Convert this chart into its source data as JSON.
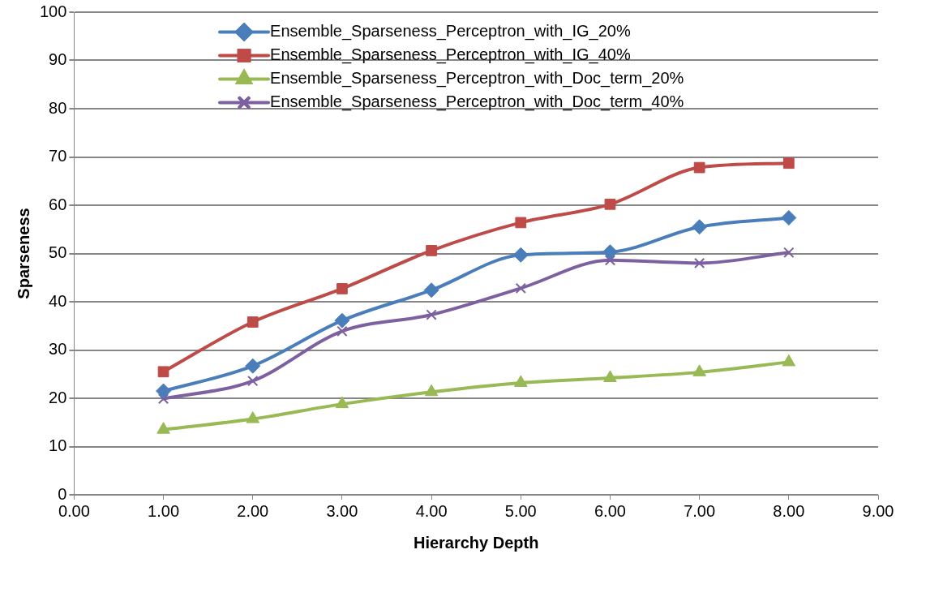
{
  "chart_data": {
    "type": "line",
    "xlabel": "Hierarchy Depth",
    "ylabel": "Sparseness",
    "x": [
      1,
      2,
      3,
      4,
      5,
      6,
      7,
      8
    ],
    "xlim": [
      0,
      9
    ],
    "xticks": [
      {
        "value": 0,
        "label": "0.00"
      },
      {
        "value": 1,
        "label": "1.00"
      },
      {
        "value": 2,
        "label": "2.00"
      },
      {
        "value": 3,
        "label": "3.00"
      },
      {
        "value": 4,
        "label": "4.00"
      },
      {
        "value": 5,
        "label": "5.00"
      },
      {
        "value": 6,
        "label": "6.00"
      },
      {
        "value": 7,
        "label": "7.00"
      },
      {
        "value": 8,
        "label": "8.00"
      },
      {
        "value": 9,
        "label": "9.00"
      }
    ],
    "ylim": [
      0,
      100
    ],
    "yticks": [
      0,
      10,
      20,
      30,
      40,
      50,
      60,
      70,
      80,
      90,
      100
    ],
    "grid": "y",
    "legend": "top",
    "line_style": "solid",
    "series": [
      {
        "name": "Ensemble_Sparseness_Perceptron_with_IG_20%",
        "color": "#4a7ebb",
        "marker": "diamond",
        "values": [
          21.5,
          26.7,
          36.1,
          42.4,
          49.7,
          50.3,
          55.5,
          57.4
        ]
      },
      {
        "name": "Ensemble_Sparseness_Perceptron_with_IG_40%",
        "color": "#be4b48",
        "marker": "square",
        "values": [
          25.5,
          35.8,
          42.7,
          50.6,
          56.4,
          60.2,
          67.8,
          68.7
        ]
      },
      {
        "name": "Ensemble_Sparseness_Perceptron_with_Doc_term_20%",
        "color": "#98b954",
        "marker": "triangle",
        "values": [
          13.5,
          15.7,
          18.8,
          21.3,
          23.2,
          24.2,
          25.4,
          27.5
        ]
      },
      {
        "name": "Ensemble_Sparseness_Perceptron_with_Doc_term_40%",
        "color": "#7d60a0",
        "marker": "cross",
        "values": [
          19.9,
          23.6,
          33.9,
          37.3,
          42.8,
          48.6,
          48.0,
          50.2
        ]
      }
    ]
  }
}
